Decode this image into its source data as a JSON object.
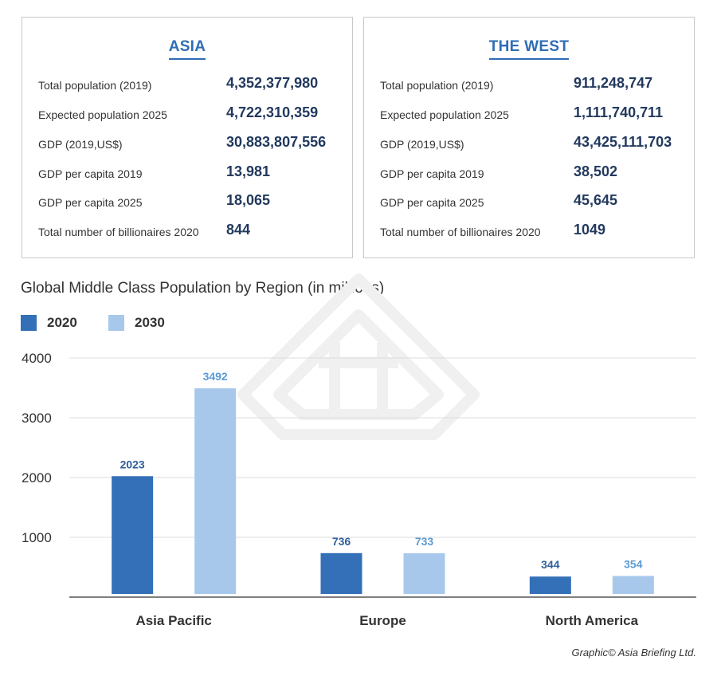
{
  "panels": {
    "asia": {
      "title": "ASIA",
      "stats": [
        {
          "label": "Total population (2019)",
          "value": "4,352,377,980"
        },
        {
          "label": "Expected population 2025",
          "value": "4,722,310,359"
        },
        {
          "label": "GDP (2019,US$)",
          "value": "30,883,807,556"
        },
        {
          "label": "GDP per capita 2019",
          "value": "13,981"
        },
        {
          "label": "GDP per capita 2025",
          "value": "18,065"
        },
        {
          "label": "Total number of billionaires 2020",
          "value": "844"
        }
      ]
    },
    "west": {
      "title": "THE WEST",
      "stats": [
        {
          "label": "Total population (2019)",
          "value": "911,248,747"
        },
        {
          "label": "Expected population 2025",
          "value": "1,111,740,711"
        },
        {
          "label": "GDP (2019,US$)",
          "value": "43,425,111,703"
        },
        {
          "label": "GDP per capita 2019",
          "value": "38,502"
        },
        {
          "label": "GDP per capita 2025",
          "value": "45,645"
        },
        {
          "label": "Total number of billionaires 2020",
          "value": "1049"
        }
      ]
    }
  },
  "chart_data": {
    "type": "bar",
    "title": "Global Middle Class Population by Region (in millions)",
    "categories": [
      "Asia Pacific",
      "Europe",
      "North America"
    ],
    "series": [
      {
        "name": "2020",
        "values": [
          2023,
          736,
          344
        ],
        "color": "#3370b8"
      },
      {
        "name": "2030",
        "values": [
          3492,
          733,
          354
        ],
        "color": "#a7c8eb"
      }
    ],
    "label_colors": [
      "#2f5f9e",
      "#5b9bd5"
    ],
    "ylim": [
      0,
      4000
    ],
    "yticks": [
      1000,
      2000,
      3000,
      4000
    ],
    "grid": true,
    "legend_position": "top-left"
  },
  "credit": "Graphic© Asia Briefing Ltd."
}
